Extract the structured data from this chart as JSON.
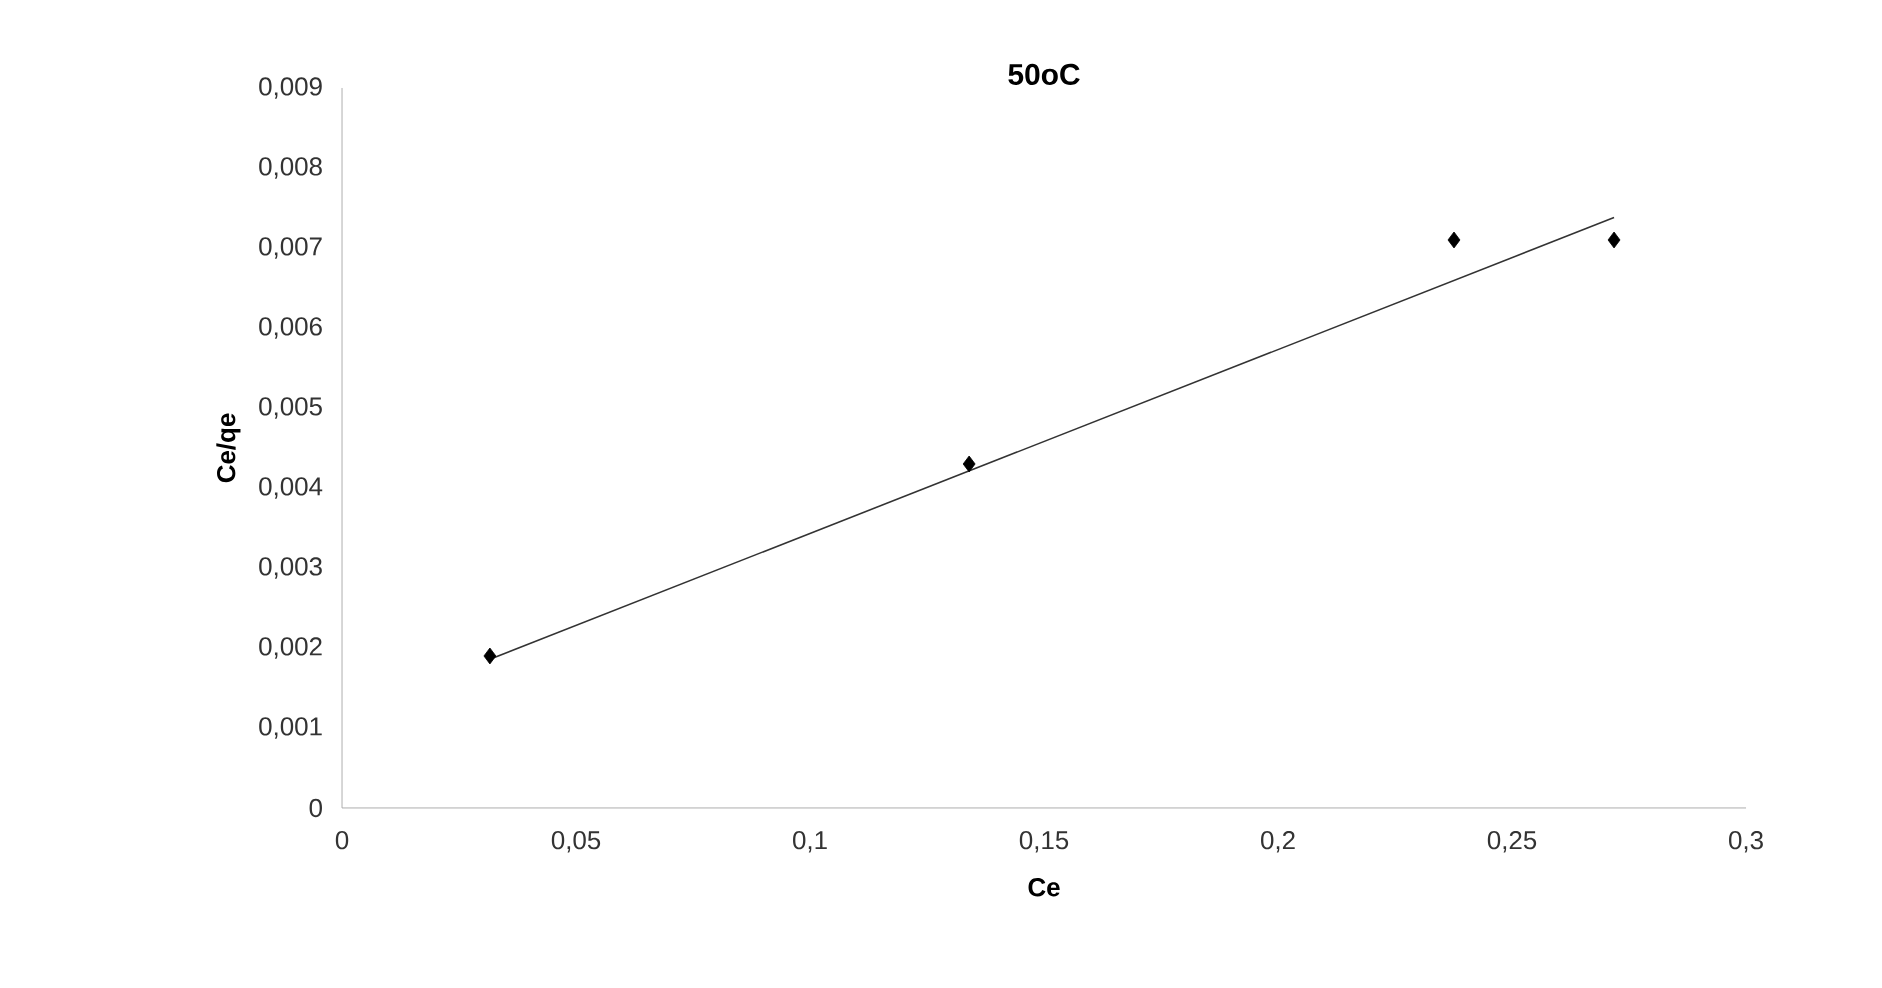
{
  "chart_data": {
    "type": "scatter",
    "title": "50oC",
    "xlabel": "Ce",
    "ylabel": "Ce/qe",
    "xlim": [
      0,
      0.3
    ],
    "xticks": [
      {
        "value": 0,
        "label": "0"
      },
      {
        "value": 0.05,
        "label": "0,05"
      },
      {
        "value": 0.1,
        "label": "0,1"
      },
      {
        "value": 0.15,
        "label": "0,15"
      },
      {
        "value": 0.2,
        "label": "0,2"
      },
      {
        "value": 0.25,
        "label": "0,25"
      },
      {
        "value": 0.3,
        "label": "0,3"
      }
    ],
    "ylim": [
      0,
      0.009
    ],
    "yticks": [
      {
        "value": 0,
        "label": "0"
      },
      {
        "value": 0.001,
        "label": "0,001"
      },
      {
        "value": 0.002,
        "label": "0,002"
      },
      {
        "value": 0.003,
        "label": "0,003"
      },
      {
        "value": 0.004,
        "label": "0,004"
      },
      {
        "value": 0.005,
        "label": "0,005"
      },
      {
        "value": 0.006,
        "label": "0,006"
      },
      {
        "value": 0.007,
        "label": "0,007"
      },
      {
        "value": 0.008,
        "label": "0,008"
      },
      {
        "value": 0.009,
        "label": "0,009"
      }
    ],
    "grid": false,
    "series": [
      {
        "marker": "diamond",
        "color": "#000000",
        "x": [
          0.0316,
          0.134,
          0.2376,
          0.2718
        ],
        "values": [
          0.0019,
          0.0043,
          0.0071,
          0.0071
        ]
      },
      {
        "type": "line",
        "marker": "none",
        "color": "#333333",
        "x": [
          0.0316,
          0.2718
        ],
        "values": [
          0.00186,
          0.00738
        ]
      }
    ]
  }
}
